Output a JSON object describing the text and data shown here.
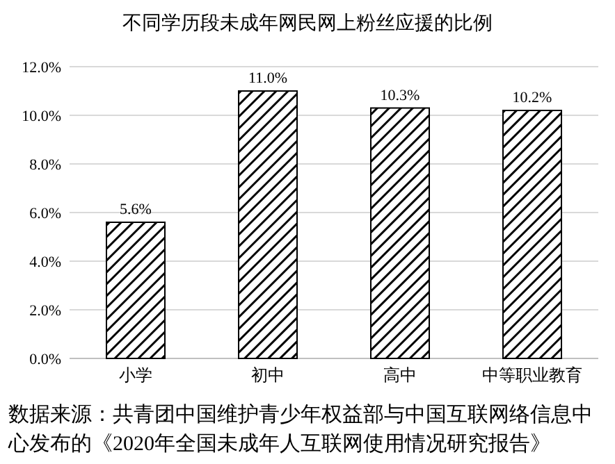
{
  "chart_data": {
    "type": "bar",
    "title": "不同学历段未成年网民网上粉丝应援的比例",
    "categories": [
      "小学",
      "初中",
      "高中",
      "中等职业教育"
    ],
    "values": [
      5.6,
      11.0,
      10.3,
      10.2
    ],
    "value_labels": [
      "5.6%",
      "11.0%",
      "10.3%",
      "10.2%"
    ],
    "color": "#000000",
    "ylim": [
      0,
      12
    ],
    "yticks": [
      {
        "value": 0,
        "label": "0.0%"
      },
      {
        "value": 2,
        "label": "2.0%"
      },
      {
        "value": 4,
        "label": "4.0%"
      },
      {
        "value": 6,
        "label": "6.0%"
      },
      {
        "value": 8,
        "label": "8.0%"
      },
      {
        "value": 10,
        "label": "10.0%"
      },
      {
        "value": 12,
        "label": "12.0%"
      }
    ],
    "grid": "y",
    "annotations": [
      "数据来源：共青团中国维护青少年权益部与中国互联网络信息中心发布的《2020年全国未成年人互联网使用情况研究报告》"
    ]
  }
}
